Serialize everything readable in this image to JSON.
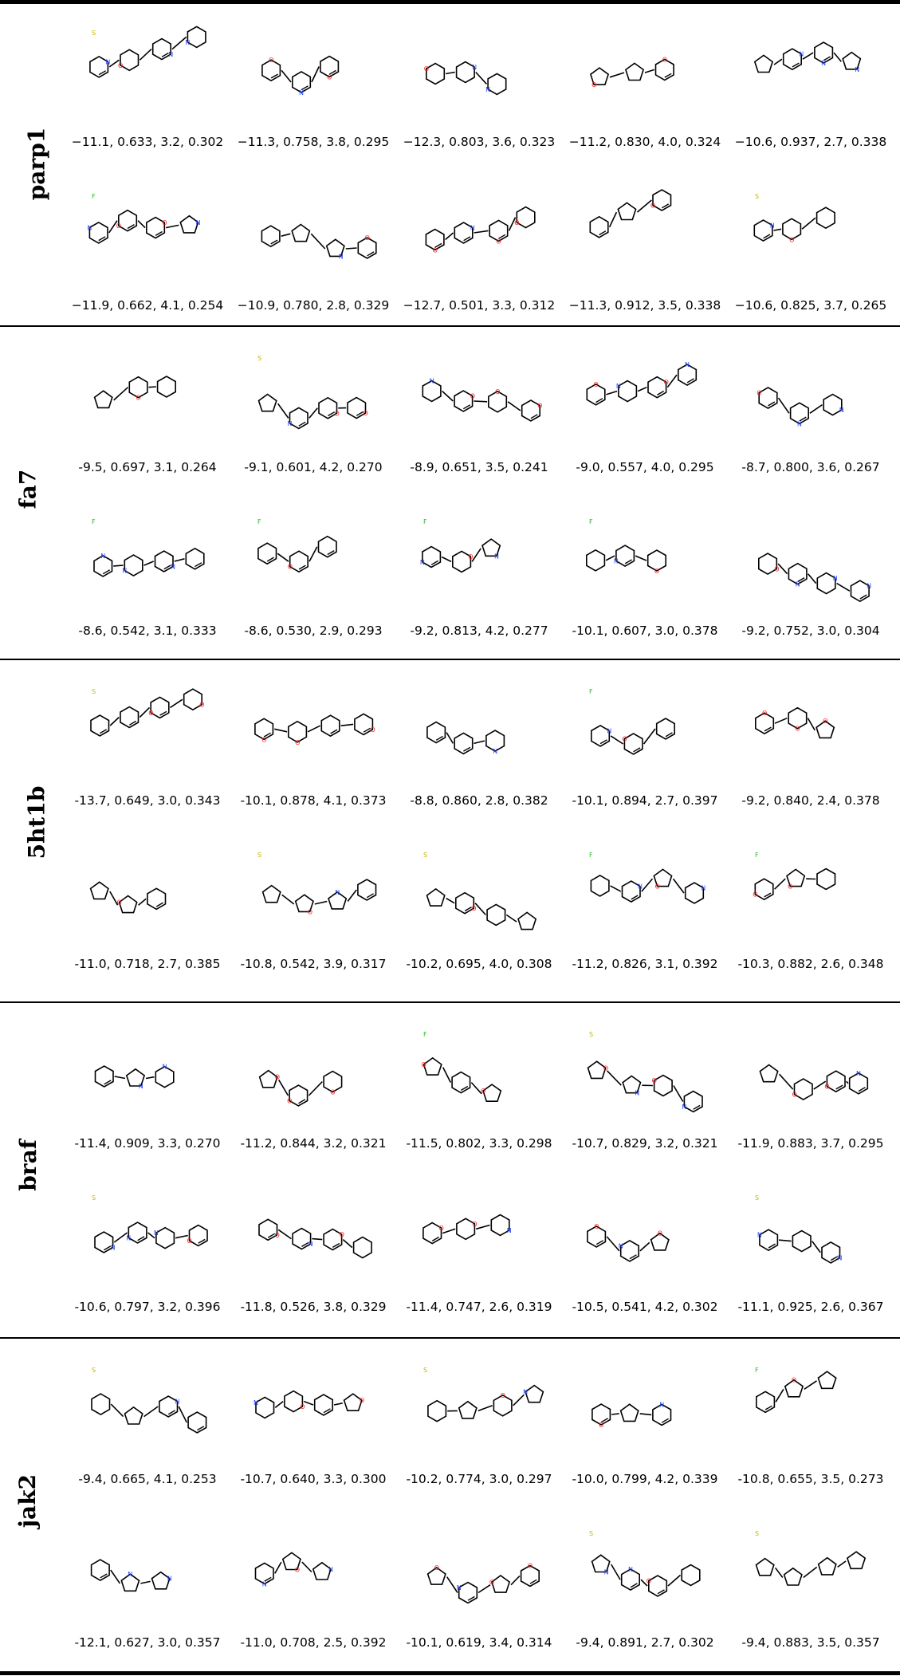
{
  "targets": [
    {
      "name": "parp1",
      "rows": [
        [
          "−11.1, 0.633, 3.2, 0.302",
          "−11.3, 0.758, 3.8, 0.295",
          "−12.3, 0.803, 3.6, 0.323",
          "−11.2, 0.830, 4.0, 0.324",
          "−10.6, 0.937, 2.7, 0.338"
        ],
        [
          "−11.9, 0.662, 4.1, 0.254",
          "−10.9, 0.780, 2.8, 0.329",
          "−12.7, 0.501, 3.3, 0.312",
          "−11.3, 0.912, 3.5, 0.338",
          "−10.6, 0.825, 3.7, 0.265"
        ]
      ]
    },
    {
      "name": "fa7",
      "rows": [
        [
          "-9.5, 0.697, 3.1, 0.264",
          "-9.1, 0.601, 4.2, 0.270",
          "-8.9, 0.651, 3.5, 0.241",
          "-9.0, 0.557, 4.0, 0.295",
          "-8.7, 0.800, 3.6, 0.267"
        ],
        [
          "-8.6, 0.542, 3.1, 0.333",
          "-8.6, 0.530, 2.9, 0.293",
          "-9.2, 0.813, 4.2, 0.277",
          "-10.1, 0.607, 3.0, 0.378",
          "-9.2, 0.752, 3.0, 0.304"
        ]
      ]
    },
    {
      "name": "5ht1b",
      "rows": [
        [
          "-13.7, 0.649, 3.0, 0.343",
          "-10.1, 0.878, 4.1, 0.373",
          "-8.8, 0.860, 2.8, 0.382",
          "-10.1, 0.894, 2.7, 0.397",
          "-9.2, 0.840, 2.4, 0.378"
        ],
        [
          "-11.0, 0.718, 2.7, 0.385",
          "-10.8, 0.542, 3.9, 0.317",
          "-10.2, 0.695, 4.0, 0.308",
          "-11.2, 0.826, 3.1, 0.392",
          "-10.3, 0.882, 2.6, 0.348"
        ]
      ]
    },
    {
      "name": "braf",
      "rows": [
        [
          "-11.4, 0.909, 3.3, 0.270",
          "-11.2, 0.844, 3.2, 0.321",
          "-11.5, 0.802, 3.3, 0.298",
          "-10.7, 0.829, 3.2, 0.321",
          "-11.9, 0.883, 3.7, 0.295"
        ],
        [
          "-10.6, 0.797, 3.2, 0.396",
          "-11.8, 0.526, 3.8, 0.329",
          "-11.4, 0.747, 2.6, 0.319",
          "-10.5, 0.541, 4.2, 0.302",
          "-11.1, 0.925, 2.6, 0.367"
        ]
      ]
    },
    {
      "name": "jak2",
      "rows": [
        [
          "-9.4, 0.665, 4.1, 0.253",
          "-10.7, 0.640, 3.3, 0.300",
          "-10.2, 0.774, 3.0, 0.297",
          "-10.0, 0.799, 4.2, 0.339",
          "-10.8, 0.655, 3.5, 0.273"
        ],
        [
          "-12.1, 0.627, 3.0, 0.357",
          "-11.0, 0.708, 2.5, 0.392",
          "-10.1, 0.619, 3.4, 0.314",
          "-9.4, 0.891, 2.7, 0.302",
          "-9.4, 0.883, 3.5, 0.357"
        ]
      ]
    }
  ],
  "colors": {
    "bond": "#000000",
    "nitrogen": "#1f3fff",
    "oxygen": "#ff1a1a",
    "fluorine": "#22bb22",
    "sulfur": "#c8b400"
  }
}
